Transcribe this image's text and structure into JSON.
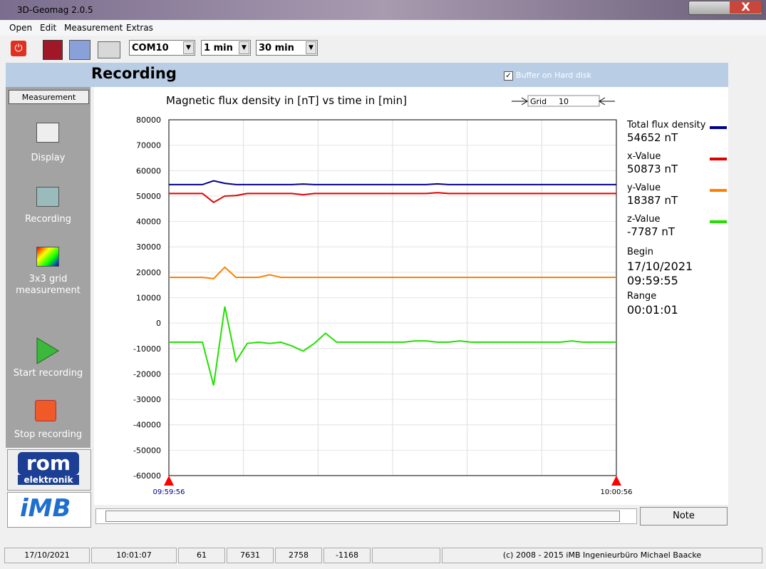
{
  "window": {
    "title": "3D-Geomag 2.0.5"
  },
  "menu": [
    "Open",
    "Edit",
    "Measurement",
    "Extras"
  ],
  "toolbar": {
    "port": "COM10",
    "interval": "1 min",
    "duration": "30 min"
  },
  "header": {
    "title": "Recording",
    "checkbox": "Buffer on Hard disk"
  },
  "sidebar": {
    "heading": "Measurement",
    "items": [
      "Display",
      "Recording",
      "3x3 grid measurement",
      "Start recording",
      "Stop recording"
    ],
    "logos": [
      "rom",
      "elektronik",
      "iMB"
    ]
  },
  "chart_data": {
    "type": "line",
    "title": "Magnetic flux density in [nT] vs time in [min]",
    "grid_control": {
      "label": "Grid",
      "value": "10"
    },
    "x_labels": [
      "09:59:56",
      "10:00:56"
    ],
    "ylim": [
      -60000,
      80000
    ],
    "yticks": [
      80000,
      70000,
      60000,
      50000,
      40000,
      30000,
      20000,
      10000,
      0,
      -10000,
      -20000,
      -30000,
      -40000,
      -50000,
      -60000
    ],
    "grid": true,
    "series": [
      {
        "name": "Total flux density",
        "readout": "54652 nT",
        "color": "#00008b",
        "values": [
          54500,
          54500,
          54500,
          54500,
          56000,
          55000,
          54500,
          54500,
          54500,
          54500,
          54500,
          54500,
          54700,
          54500,
          54500,
          54500,
          54500,
          54500,
          54500,
          54500,
          54500,
          54500,
          54500,
          54500,
          54800,
          54500,
          54500,
          54500,
          54500,
          54500,
          54500,
          54500,
          54500,
          54500,
          54500,
          54500,
          54500,
          54500,
          54500,
          54500,
          54500
        ]
      },
      {
        "name": "x-Value",
        "readout": "50873 nT",
        "color": "#e00000",
        "values": [
          51000,
          51000,
          51000,
          51000,
          47500,
          50000,
          50200,
          51000,
          51000,
          51000,
          51000,
          51000,
          50500,
          51000,
          51000,
          51000,
          51000,
          51000,
          51000,
          51000,
          51000,
          51000,
          51000,
          51000,
          51300,
          51000,
          51000,
          51000,
          51000,
          51000,
          51000,
          51000,
          51000,
          51000,
          51000,
          51000,
          51000,
          51000,
          51000,
          51000,
          51000
        ]
      },
      {
        "name": "y-Value",
        "readout": "18387 nT",
        "color": "#ff8000",
        "values": [
          18000,
          18000,
          18000,
          18000,
          17500,
          22000,
          18000,
          18000,
          18000,
          19000,
          18000,
          18000,
          18000,
          18000,
          18000,
          18000,
          18000,
          18000,
          18000,
          18000,
          18000,
          18000,
          18000,
          18000,
          18000,
          18000,
          18000,
          18000,
          18000,
          18000,
          18000,
          18000,
          18000,
          18000,
          18000,
          18000,
          18000,
          18000,
          18000,
          18000,
          18000
        ]
      },
      {
        "name": "z-Value",
        "readout": "-7787 nT",
        "color": "#22e000",
        "values": [
          -7500,
          -7500,
          -7500,
          -7500,
          -24500,
          6500,
          -15000,
          -8000,
          -7500,
          -8000,
          -7500,
          -9000,
          -11000,
          -8000,
          -4000,
          -7500,
          -7500,
          -7500,
          -7500,
          -7500,
          -7500,
          -7500,
          -7000,
          -7000,
          -7500,
          -7500,
          -7000,
          -7500,
          -7500,
          -7500,
          -7500,
          -7500,
          -7500,
          -7500,
          -7500,
          -7500,
          -7000,
          -7500,
          -7500,
          -7500,
          -7500
        ]
      }
    ],
    "info": {
      "begin_label": "Begin",
      "begin_date": "17/10/2021",
      "begin_time": "09:59:55",
      "range_label": "Range",
      "range": "00:01:01"
    }
  },
  "bottom": {
    "note": "Note"
  },
  "status": [
    "17/10/2021",
    "10:01:07",
    "61",
    "7631",
    "2758",
    "-1168",
    "(c) 2008 - 2015 iMB  Ingenieurbüro Michael Baacke"
  ]
}
